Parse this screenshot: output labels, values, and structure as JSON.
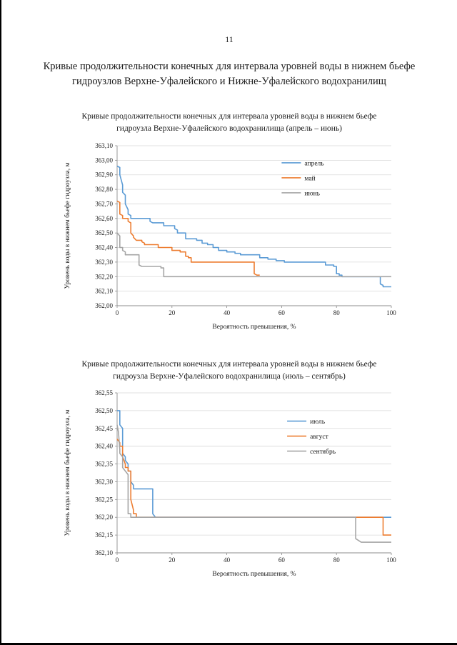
{
  "page": {
    "number": "11",
    "heading": "Кривые продолжительности конечных для интервала уровней воды в нижнем бьефе гидроузлов Верхне-Уфалейского и Нижне-Уфалейского водохранилищ"
  },
  "chart_data": [
    {
      "type": "line",
      "title": "Кривые продолжительности конечных для интервала уровней воды в нижнем бьефе гидроузла Верхне-Уфалейского водохранилища (апрель – июнь)",
      "xlabel": "Вероятность превышения, %",
      "ylabel": "Уровень воды в нижнем бьефе гидроузла, м",
      "xlim": [
        0,
        100
      ],
      "xticks": [
        0,
        20,
        40,
        60,
        80,
        100
      ],
      "ylim": [
        362.0,
        363.1
      ],
      "ytick_step": 0.1,
      "grid": "horizontal",
      "decimal_separator": ",",
      "legend_position": "inside-top-right",
      "legend_offset": [
        0.6,
        0.08
      ],
      "series": [
        {
          "name": "апрель",
          "color": "#5B9BD5",
          "points": [
            [
              0,
              362.96
            ],
            [
              1,
              362.95
            ],
            [
              1,
              362.9
            ],
            [
              2,
              362.83
            ],
            [
              2,
              362.78
            ],
            [
              3,
              362.76
            ],
            [
              3,
              362.7
            ],
            [
              4,
              362.66
            ],
            [
              4,
              362.63
            ],
            [
              5,
              362.62
            ],
            [
              5,
              362.6
            ],
            [
              12,
              362.6
            ],
            [
              12,
              362.58
            ],
            [
              13,
              362.57
            ],
            [
              17,
              362.57
            ],
            [
              17,
              362.55
            ],
            [
              21,
              362.55
            ],
            [
              21,
              362.53
            ],
            [
              22,
              362.52
            ],
            [
              22,
              362.5
            ],
            [
              25,
              362.5
            ],
            [
              25,
              362.46
            ],
            [
              29,
              362.46
            ],
            [
              29,
              362.45
            ],
            [
              31,
              362.45
            ],
            [
              31,
              362.43
            ],
            [
              33,
              362.43
            ],
            [
              33,
              362.42
            ],
            [
              35,
              362.42
            ],
            [
              35,
              362.4
            ],
            [
              37,
              362.4
            ],
            [
              37,
              362.38
            ],
            [
              40,
              362.38
            ],
            [
              40,
              362.37
            ],
            [
              43,
              362.37
            ],
            [
              43,
              362.36
            ],
            [
              45,
              362.36
            ],
            [
              45,
              362.35
            ],
            [
              52,
              362.35
            ],
            [
              52,
              362.33
            ],
            [
              55,
              362.33
            ],
            [
              55,
              362.32
            ],
            [
              58,
              362.32
            ],
            [
              58,
              362.31
            ],
            [
              61,
              362.31
            ],
            [
              61,
              362.3
            ],
            [
              76,
              362.3
            ],
            [
              76,
              362.28
            ],
            [
              79,
              362.28
            ],
            [
              79,
              362.27
            ],
            [
              80,
              362.27
            ],
            [
              80,
              362.22
            ],
            [
              81,
              362.22
            ],
            [
              81,
              362.21
            ],
            [
              82,
              362.21
            ],
            [
              82,
              362.2
            ],
            [
              96,
              362.2
            ],
            [
              96,
              362.15
            ],
            [
              97,
              362.14
            ],
            [
              97,
              362.13
            ],
            [
              100,
              362.13
            ]
          ]
        },
        {
          "name": "май",
          "color": "#ED7D31",
          "points": [
            [
              0,
              362.72
            ],
            [
              1,
              362.71
            ],
            [
              1,
              362.63
            ],
            [
              2,
              362.62
            ],
            [
              2,
              362.6
            ],
            [
              4,
              362.6
            ],
            [
              4,
              362.58
            ],
            [
              5,
              362.57
            ],
            [
              5,
              362.5
            ],
            [
              6,
              362.48
            ],
            [
              6,
              362.47
            ],
            [
              7,
              362.45
            ],
            [
              9,
              362.45
            ],
            [
              9,
              362.44
            ],
            [
              10,
              362.43
            ],
            [
              10,
              362.42
            ],
            [
              15,
              362.42
            ],
            [
              15,
              362.4
            ],
            [
              20,
              362.4
            ],
            [
              20,
              362.38
            ],
            [
              23,
              362.38
            ],
            [
              23,
              362.37
            ],
            [
              25,
              362.37
            ],
            [
              25,
              362.34
            ],
            [
              26,
              362.34
            ],
            [
              26,
              362.33
            ],
            [
              27,
              362.33
            ],
            [
              27,
              362.3
            ],
            [
              50,
              362.3
            ],
            [
              50,
              362.22
            ],
            [
              51,
              362.21
            ],
            [
              52,
              362.21
            ]
          ]
        },
        {
          "name": "июнь",
          "color": "#A5A5A5",
          "points": [
            [
              0,
              362.5
            ],
            [
              1,
              362.48
            ],
            [
              1,
              362.4
            ],
            [
              2,
              362.4
            ],
            [
              2,
              362.38
            ],
            [
              3,
              362.37
            ],
            [
              3,
              362.35
            ],
            [
              8,
              362.35
            ],
            [
              8,
              362.28
            ],
            [
              9,
              362.27
            ],
            [
              16,
              362.27
            ],
            [
              16,
              362.26
            ],
            [
              17,
              362.26
            ],
            [
              17,
              362.2
            ],
            [
              100,
              362.2
            ]
          ]
        }
      ]
    },
    {
      "type": "line",
      "title": "Кривые продолжительности конечных для интервала уровней воды в нижнем бьефе гидроузла Верхне-Уфалейского водохранилища (июль – сентябрь)",
      "xlabel": "Вероятность превышения, %",
      "ylabel": "Уровень воды в нижнем бьефе гидроузла, м",
      "xlim": [
        0,
        100
      ],
      "xticks": [
        0,
        20,
        40,
        60,
        80,
        100
      ],
      "ylim": [
        362.1,
        362.55
      ],
      "ytick_step": 0.05,
      "grid": "horizontal",
      "decimal_separator": ",",
      "legend_position": "inside-top-right",
      "legend_offset": [
        0.62,
        0.15
      ],
      "series": [
        {
          "name": "июль",
          "color": "#5B9BD5",
          "points": [
            [
              0,
              362.5
            ],
            [
              1,
              362.5
            ],
            [
              1,
              362.46
            ],
            [
              2,
              362.45
            ],
            [
              2,
              362.38
            ],
            [
              3,
              362.37
            ],
            [
              3,
              362.36
            ],
            [
              4,
              362.35
            ],
            [
              4,
              362.33
            ],
            [
              5,
              362.33
            ],
            [
              5,
              362.3
            ],
            [
              6,
              362.29
            ],
            [
              6,
              362.28
            ],
            [
              13,
              362.28
            ],
            [
              13,
              362.21
            ],
            [
              14,
              362.2
            ],
            [
              100,
              362.2
            ]
          ]
        },
        {
          "name": "август",
          "color": "#ED7D31",
          "points": [
            [
              0,
              362.42
            ],
            [
              1,
              362.41
            ],
            [
              1,
              362.4
            ],
            [
              2,
              362.4
            ],
            [
              2,
              362.37
            ],
            [
              3,
              362.35
            ],
            [
              3,
              362.34
            ],
            [
              4,
              362.34
            ],
            [
              4,
              362.33
            ],
            [
              5,
              362.33
            ],
            [
              5,
              362.25
            ],
            [
              6,
              362.22
            ],
            [
              6,
              362.21
            ],
            [
              7,
              362.21
            ],
            [
              7,
              362.2
            ],
            [
              97,
              362.2
            ],
            [
              97,
              362.15
            ],
            [
              98,
              362.15
            ],
            [
              100,
              362.15
            ]
          ]
        },
        {
          "name": "сентябрь",
          "color": "#A5A5A5",
          "points": [
            [
              0,
              362.46
            ],
            [
              0.5,
              362.44
            ],
            [
              1,
              362.39
            ],
            [
              1,
              362.38
            ],
            [
              2,
              362.37
            ],
            [
              2,
              362.34
            ],
            [
              3,
              362.33
            ],
            [
              4,
              362.32
            ],
            [
              4,
              362.21
            ],
            [
              5,
              362.21
            ],
            [
              5,
              362.2
            ],
            [
              87,
              362.2
            ],
            [
              87,
              362.14
            ],
            [
              89,
              362.13
            ],
            [
              100,
              362.13
            ]
          ]
        }
      ]
    }
  ]
}
